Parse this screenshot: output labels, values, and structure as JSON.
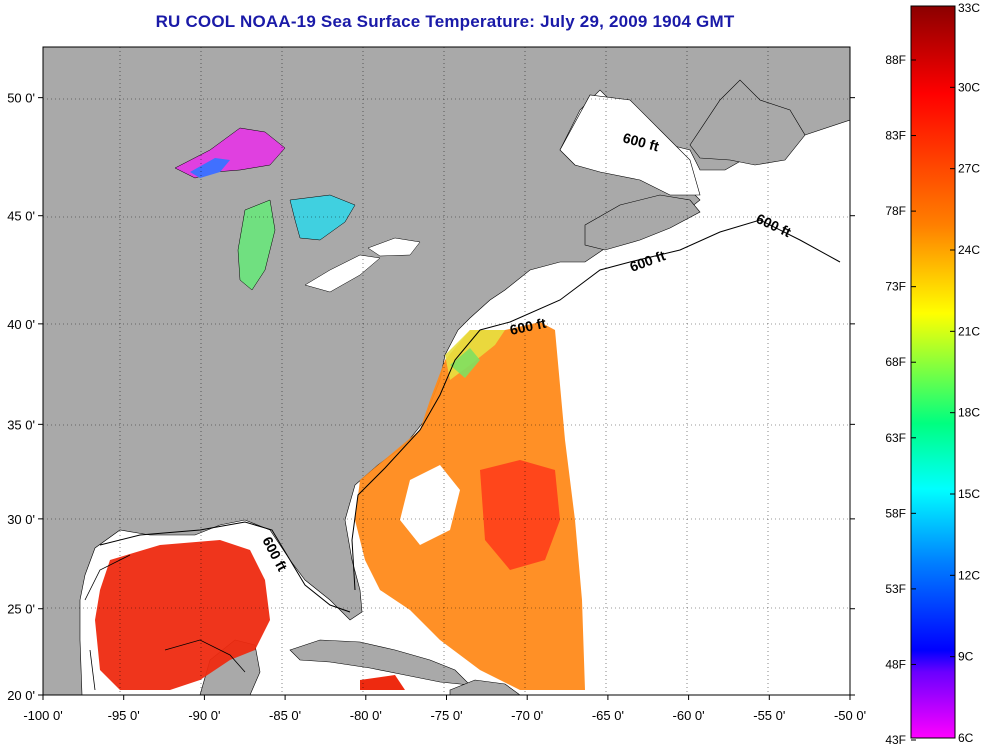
{
  "title": "RU COOL  NOAA-19  Sea Surface Temperature:  July 29, 2009 1904 GMT",
  "map": {
    "lon_range": [
      -100,
      -50
    ],
    "lat_range": [
      20,
      52
    ],
    "lon_ticks": [
      {
        "value": -100,
        "label": "-100 0'"
      },
      {
        "value": -95,
        "label": "-95 0'"
      },
      {
        "value": -90,
        "label": "-90 0'"
      },
      {
        "value": -85,
        "label": "-85 0'"
      },
      {
        "value": -80,
        "label": "-80 0'"
      },
      {
        "value": -75,
        "label": "-75 0'"
      },
      {
        "value": -70,
        "label": "-70 0'"
      },
      {
        "value": -65,
        "label": "-65 0'"
      },
      {
        "value": -60,
        "label": "-60 0'"
      },
      {
        "value": -55,
        "label": "-55 0'"
      },
      {
        "value": -50,
        "label": "-50 0'"
      }
    ],
    "lat_ticks": [
      {
        "value": 20,
        "label": "20 0'"
      },
      {
        "value": 25,
        "label": "25 0'"
      },
      {
        "value": 30,
        "label": "30 0'"
      },
      {
        "value": 35,
        "label": "35 0'"
      },
      {
        "value": 40,
        "label": "40 0'"
      },
      {
        "value": 45,
        "label": "45 0'"
      },
      {
        "value": 50,
        "label": "50 0'"
      }
    ],
    "isobath_labels": [
      "600 ft",
      "600 ft",
      "600 ft",
      "600 ft",
      "600 ft"
    ],
    "colors": {
      "land": "#a9a9a9",
      "no_data": "#ffffff",
      "grid": "#000000"
    }
  },
  "colorbar": {
    "fahrenheit": [
      "88F",
      "83F",
      "78F",
      "73F",
      "68F",
      "63F",
      "58F",
      "53F",
      "48F",
      "43F"
    ],
    "celsius": [
      "33C",
      "30C",
      "27C",
      "24C",
      "21C",
      "18C",
      "15C",
      "12C",
      "9C",
      "6C"
    ],
    "gradient_stops": [
      "#8b0000",
      "#ff0000",
      "#ff8000",
      "#ffff00",
      "#00ff80",
      "#00ffff",
      "#0080ff",
      "#0000ff",
      "#8000ff",
      "#ff00ff"
    ]
  }
}
